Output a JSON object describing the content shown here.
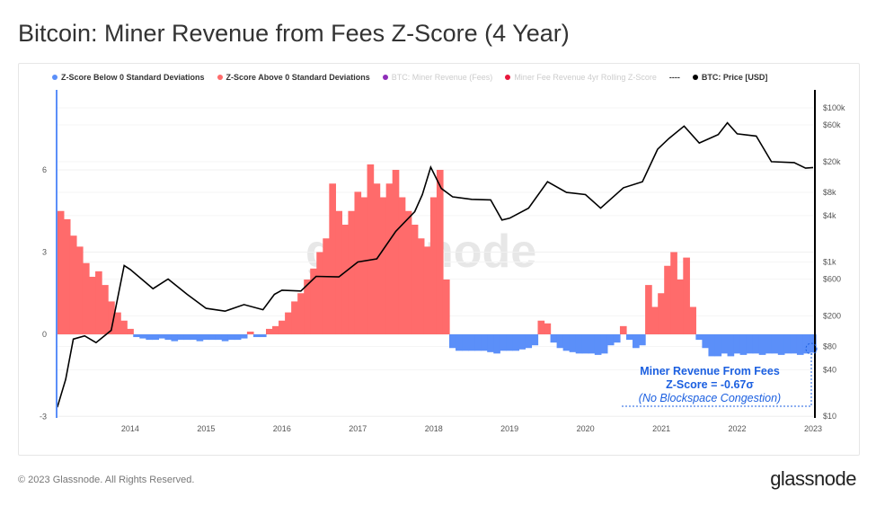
{
  "title": "Bitcoin: Miner Revenue from Fees Z-Score (4 Year)",
  "footer": "© 2023 Glassnode. All Rights Reserved.",
  "logo": "glassnode",
  "watermark": "glassnode",
  "colors": {
    "below": "#5b8ff9",
    "above": "#ff6b6b",
    "price": "#000000",
    "fees": "#8e2eb8",
    "zscore": "#e8173c",
    "accent": "#1b5fe0"
  },
  "legend": [
    {
      "label": "Z-Score Below 0 Standard Deviations",
      "color": "#5b8ff9",
      "faded": false
    },
    {
      "label": "Z-Score Above 0 Standard Deviations",
      "color": "#ff6b6b",
      "faded": false
    },
    {
      "label": "BTC: Miner Revenue (Fees)",
      "color": "#8e2eb8",
      "faded": true
    },
    {
      "label": "Miner Fee Revenue 4yr Rolling Z-Score",
      "color": "#e8173c",
      "faded": true
    },
    {
      "label": "----",
      "color": "",
      "faded": false
    },
    {
      "label": "BTC: Price [USD]",
      "color": "#000000",
      "faded": false
    }
  ],
  "annotation": {
    "line1": "Miner Revenue From Fees",
    "line2": "Z-Score = -0.67σ",
    "line3": "(No Blockspace Congestion)"
  },
  "chart_data": {
    "type": "bar+line",
    "title": "Bitcoin: Miner Revenue from Fees Z-Score (4 Year)",
    "xlim": [
      2013.03,
      2023.0
    ],
    "x_ticks": [
      "2014",
      "2015",
      "2016",
      "2017",
      "2018",
      "2019",
      "2020",
      "2021",
      "2022",
      "2023"
    ],
    "y_left": {
      "ylim": [
        -3,
        8
      ],
      "ticks": [
        "6",
        "3",
        "0",
        "-3"
      ],
      "tick_values": [
        6,
        3,
        0,
        -3
      ]
    },
    "y_right": {
      "scale": "log",
      "ylim": [
        10,
        100000
      ],
      "ticks": [
        "$100k",
        "$60k",
        "$20k",
        "$8k",
        "$4k",
        "$1k",
        "$600",
        "$200",
        "$80",
        "$40",
        "$10"
      ],
      "tick_values": [
        100000,
        60000,
        20000,
        8000,
        4000,
        1000,
        600,
        200,
        80,
        40,
        10
      ]
    },
    "zscore": {
      "name": "Miner Fee Revenue 4yr Rolling Z-Score",
      "start": 2013.04,
      "step_years": 0.0833,
      "values": [
        4.5,
        4.2,
        3.6,
        3.2,
        2.6,
        2.1,
        2.3,
        1.8,
        1.2,
        0.8,
        0.5,
        0.2,
        -0.1,
        -0.15,
        -0.2,
        -0.2,
        -0.15,
        -0.2,
        -0.25,
        -0.2,
        -0.2,
        -0.2,
        -0.25,
        -0.2,
        -0.2,
        -0.2,
        -0.25,
        -0.2,
        -0.2,
        -0.15,
        0.1,
        -0.1,
        -0.1,
        0.2,
        0.3,
        0.5,
        0.8,
        1.2,
        1.5,
        2.0,
        2.4,
        3.0,
        3.5,
        5.5,
        4.5,
        4.0,
        4.5,
        5.2,
        5.0,
        6.2,
        5.5,
        5.0,
        5.5,
        6.0,
        5.0,
        4.5,
        4.0,
        3.5,
        3.2,
        5.0,
        6.0,
        2.0,
        -0.5,
        -0.6,
        -0.6,
        -0.6,
        -0.6,
        -0.6,
        -0.65,
        -0.7,
        -0.6,
        -0.6,
        -0.6,
        -0.55,
        -0.5,
        -0.4,
        0.5,
        0.4,
        -0.3,
        -0.5,
        -0.6,
        -0.65,
        -0.7,
        -0.7,
        -0.7,
        -0.75,
        -0.7,
        -0.4,
        -0.3,
        0.3,
        -0.2,
        -0.5,
        -0.4,
        1.8,
        1.0,
        1.5,
        2.5,
        3.0,
        2.0,
        2.8,
        1.0,
        -0.2,
        -0.5,
        -0.8,
        -0.8,
        -0.7,
        -0.8,
        -0.7,
        -0.75,
        -0.7,
        -0.7,
        -0.75,
        -0.7,
        -0.7,
        -0.75,
        -0.7,
        -0.7,
        -0.75,
        -0.7,
        -0.67
      ]
    },
    "price": {
      "name": "BTC: Price [USD]",
      "x": [
        2013.04,
        2013.15,
        2013.25,
        2013.4,
        2013.55,
        2013.75,
        2013.92,
        2014.0,
        2014.15,
        2014.3,
        2014.5,
        2014.75,
        2015.0,
        2015.25,
        2015.5,
        2015.75,
        2015.9,
        2016.0,
        2016.25,
        2016.45,
        2016.75,
        2017.0,
        2017.25,
        2017.5,
        2017.75,
        2017.85,
        2017.96,
        2018.1,
        2018.25,
        2018.5,
        2018.75,
        2018.9,
        2019.0,
        2019.25,
        2019.5,
        2019.75,
        2020.0,
        2020.2,
        2020.5,
        2020.75,
        2020.95,
        2021.1,
        2021.3,
        2021.5,
        2021.75,
        2021.87,
        2022.0,
        2022.25,
        2022.45,
        2022.75,
        2022.9,
        2023.0
      ],
      "y": [
        13,
        30,
        100,
        110,
        90,
        130,
        900,
        800,
        600,
        450,
        600,
        380,
        250,
        230,
        280,
        240,
        380,
        430,
        420,
        650,
        640,
        1000,
        1100,
        2500,
        4500,
        7500,
        17000,
        9000,
        7000,
        6500,
        6400,
        3500,
        3700,
        5000,
        11000,
        8000,
        7500,
        5000,
        9200,
        11000,
        29000,
        40000,
        58000,
        35000,
        45000,
        64000,
        46000,
        43000,
        20000,
        19500,
        16500,
        16800
      ]
    }
  }
}
